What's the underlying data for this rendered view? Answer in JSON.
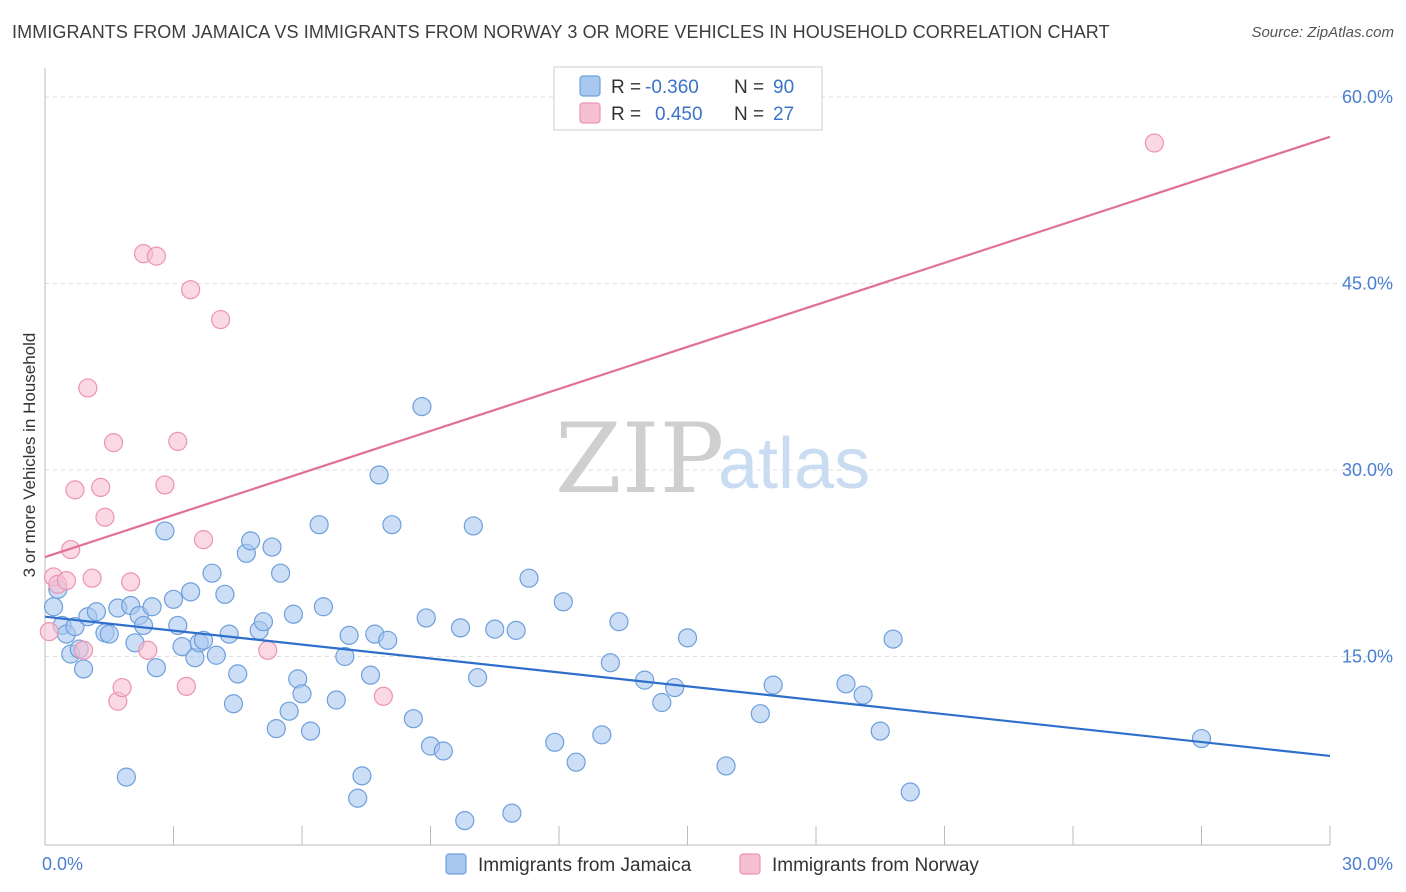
{
  "title": "IMMIGRANTS FROM JAMAICA VS IMMIGRANTS FROM NORWAY 3 OR MORE VEHICLES IN HOUSEHOLD CORRELATION CHART",
  "source": "Source: ZipAtlas.com",
  "watermark": {
    "zip": "ZIP",
    "atlas": "atlas"
  },
  "colors": {
    "jamaica_fill": "#a9c8ef",
    "jamaica_stroke": "#6e9fdc",
    "jamaica_line": "#2e6fcc",
    "norway_fill": "#f6bfd2",
    "norway_stroke": "#ec93b2",
    "norway_line": "#e07098",
    "grid": "#dddddd",
    "tick_text": "#4a7fd0"
  },
  "legend": {
    "r_label": "R =",
    "n_label": "N =",
    "jamaica": {
      "r": "-0.360",
      "n": "90"
    },
    "norway": {
      "r": "0.450",
      "n": "27"
    }
  },
  "chart_data": {
    "type": "scatter",
    "title": "IMMIGRANTS FROM JAMAICA VS IMMIGRANTS FROM NORWAY 3 OR MORE VEHICLES IN HOUSEHOLD CORRELATION CHART",
    "xlabel": "",
    "ylabel": "3 or more Vehicles in Household",
    "xlim": [
      0,
      30
    ],
    "ylim": [
      0,
      60
    ],
    "x_ticks": [
      {
        "value": 0,
        "label": "0.0%"
      },
      {
        "value": 30,
        "label": "30.0%"
      }
    ],
    "y_ticks": [
      {
        "value": 15,
        "label": "15.0%"
      },
      {
        "value": 30,
        "label": "30.0%"
      },
      {
        "value": 45,
        "label": "45.0%"
      },
      {
        "value": 60,
        "label": "60.0%"
      }
    ],
    "grid": true,
    "legend_position": "top-center",
    "series": [
      {
        "name": "Immigrants from Jamaica",
        "trend": {
          "x": [
            0,
            30
          ],
          "y": [
            18.2,
            7.0
          ]
        },
        "points": [
          [
            0.2,
            19.0
          ],
          [
            0.3,
            20.4
          ],
          [
            0.4,
            17.5
          ],
          [
            0.5,
            16.8
          ],
          [
            0.6,
            15.2
          ],
          [
            0.7,
            17.4
          ],
          [
            0.8,
            15.6
          ],
          [
            0.9,
            14.0
          ],
          [
            1.0,
            18.2
          ],
          [
            1.2,
            18.6
          ],
          [
            1.4,
            16.9
          ],
          [
            1.5,
            16.8
          ],
          [
            1.7,
            18.9
          ],
          [
            1.9,
            5.3
          ],
          [
            2.0,
            19.1
          ],
          [
            2.1,
            16.1
          ],
          [
            2.2,
            18.3
          ],
          [
            2.3,
            17.5
          ],
          [
            2.5,
            19.0
          ],
          [
            2.6,
            14.1
          ],
          [
            2.8,
            25.1
          ],
          [
            3.0,
            19.6
          ],
          [
            3.1,
            17.5
          ],
          [
            3.2,
            15.8
          ],
          [
            3.4,
            20.2
          ],
          [
            3.5,
            14.9
          ],
          [
            3.6,
            16.1
          ],
          [
            3.7,
            16.3
          ],
          [
            3.9,
            21.7
          ],
          [
            4.0,
            15.1
          ],
          [
            4.2,
            20.0
          ],
          [
            4.3,
            16.8
          ],
          [
            4.4,
            11.2
          ],
          [
            4.5,
            13.6
          ],
          [
            4.7,
            23.3
          ],
          [
            4.8,
            24.3
          ],
          [
            5.0,
            17.1
          ],
          [
            5.1,
            17.8
          ],
          [
            5.3,
            23.8
          ],
          [
            5.4,
            9.2
          ],
          [
            5.5,
            21.7
          ],
          [
            5.7,
            10.6
          ],
          [
            5.8,
            18.4
          ],
          [
            5.9,
            13.2
          ],
          [
            6.0,
            12.0
          ],
          [
            6.2,
            9.0
          ],
          [
            6.4,
            25.6
          ],
          [
            6.5,
            19.0
          ],
          [
            6.8,
            11.5
          ],
          [
            7.0,
            15.0
          ],
          [
            7.1,
            16.7
          ],
          [
            7.3,
            3.6
          ],
          [
            7.4,
            5.4
          ],
          [
            7.6,
            13.5
          ],
          [
            7.7,
            16.8
          ],
          [
            7.8,
            29.6
          ],
          [
            8.0,
            16.3
          ],
          [
            8.1,
            25.6
          ],
          [
            8.6,
            10.0
          ],
          [
            8.8,
            35.1
          ],
          [
            8.9,
            18.1
          ],
          [
            9.0,
            7.8
          ],
          [
            9.3,
            7.4
          ],
          [
            9.7,
            17.3
          ],
          [
            9.8,
            1.8
          ],
          [
            10.0,
            25.5
          ],
          [
            10.1,
            13.3
          ],
          [
            10.5,
            17.2
          ],
          [
            10.9,
            2.4
          ],
          [
            11.0,
            17.1
          ],
          [
            11.3,
            21.3
          ],
          [
            11.9,
            8.1
          ],
          [
            12.1,
            19.4
          ],
          [
            12.4,
            6.5
          ],
          [
            13.0,
            8.7
          ],
          [
            13.2,
            14.5
          ],
          [
            13.4,
            17.8
          ],
          [
            14.0,
            13.1
          ],
          [
            14.4,
            11.3
          ],
          [
            14.7,
            12.5
          ],
          [
            15.0,
            16.5
          ],
          [
            15.9,
            6.2
          ],
          [
            16.7,
            10.4
          ],
          [
            17.0,
            12.7
          ],
          [
            18.7,
            12.8
          ],
          [
            19.1,
            11.9
          ],
          [
            19.5,
            9.0
          ],
          [
            19.8,
            16.4
          ],
          [
            20.2,
            4.1
          ],
          [
            27.0,
            8.4
          ]
        ]
      },
      {
        "name": "Immigrants from Norway",
        "trend": {
          "x": [
            0,
            30
          ],
          "y": [
            23.0,
            56.8
          ]
        },
        "points": [
          [
            0.1,
            17.0
          ],
          [
            0.2,
            21.4
          ],
          [
            0.3,
            20.8
          ],
          [
            0.5,
            21.1
          ],
          [
            0.6,
            23.6
          ],
          [
            0.7,
            28.4
          ],
          [
            0.9,
            15.5
          ],
          [
            1.0,
            36.6
          ],
          [
            1.1,
            21.3
          ],
          [
            1.3,
            28.6
          ],
          [
            1.4,
            26.2
          ],
          [
            1.6,
            32.2
          ],
          [
            1.7,
            11.4
          ],
          [
            1.8,
            12.5
          ],
          [
            2.0,
            21.0
          ],
          [
            2.3,
            47.4
          ],
          [
            2.4,
            15.5
          ],
          [
            2.6,
            47.2
          ],
          [
            2.8,
            28.8
          ],
          [
            3.1,
            32.3
          ],
          [
            3.3,
            12.6
          ],
          [
            3.4,
            44.5
          ],
          [
            3.7,
            24.4
          ],
          [
            4.1,
            42.1
          ],
          [
            5.2,
            15.5
          ],
          [
            7.9,
            11.8
          ],
          [
            25.9,
            56.3
          ]
        ]
      }
    ]
  }
}
